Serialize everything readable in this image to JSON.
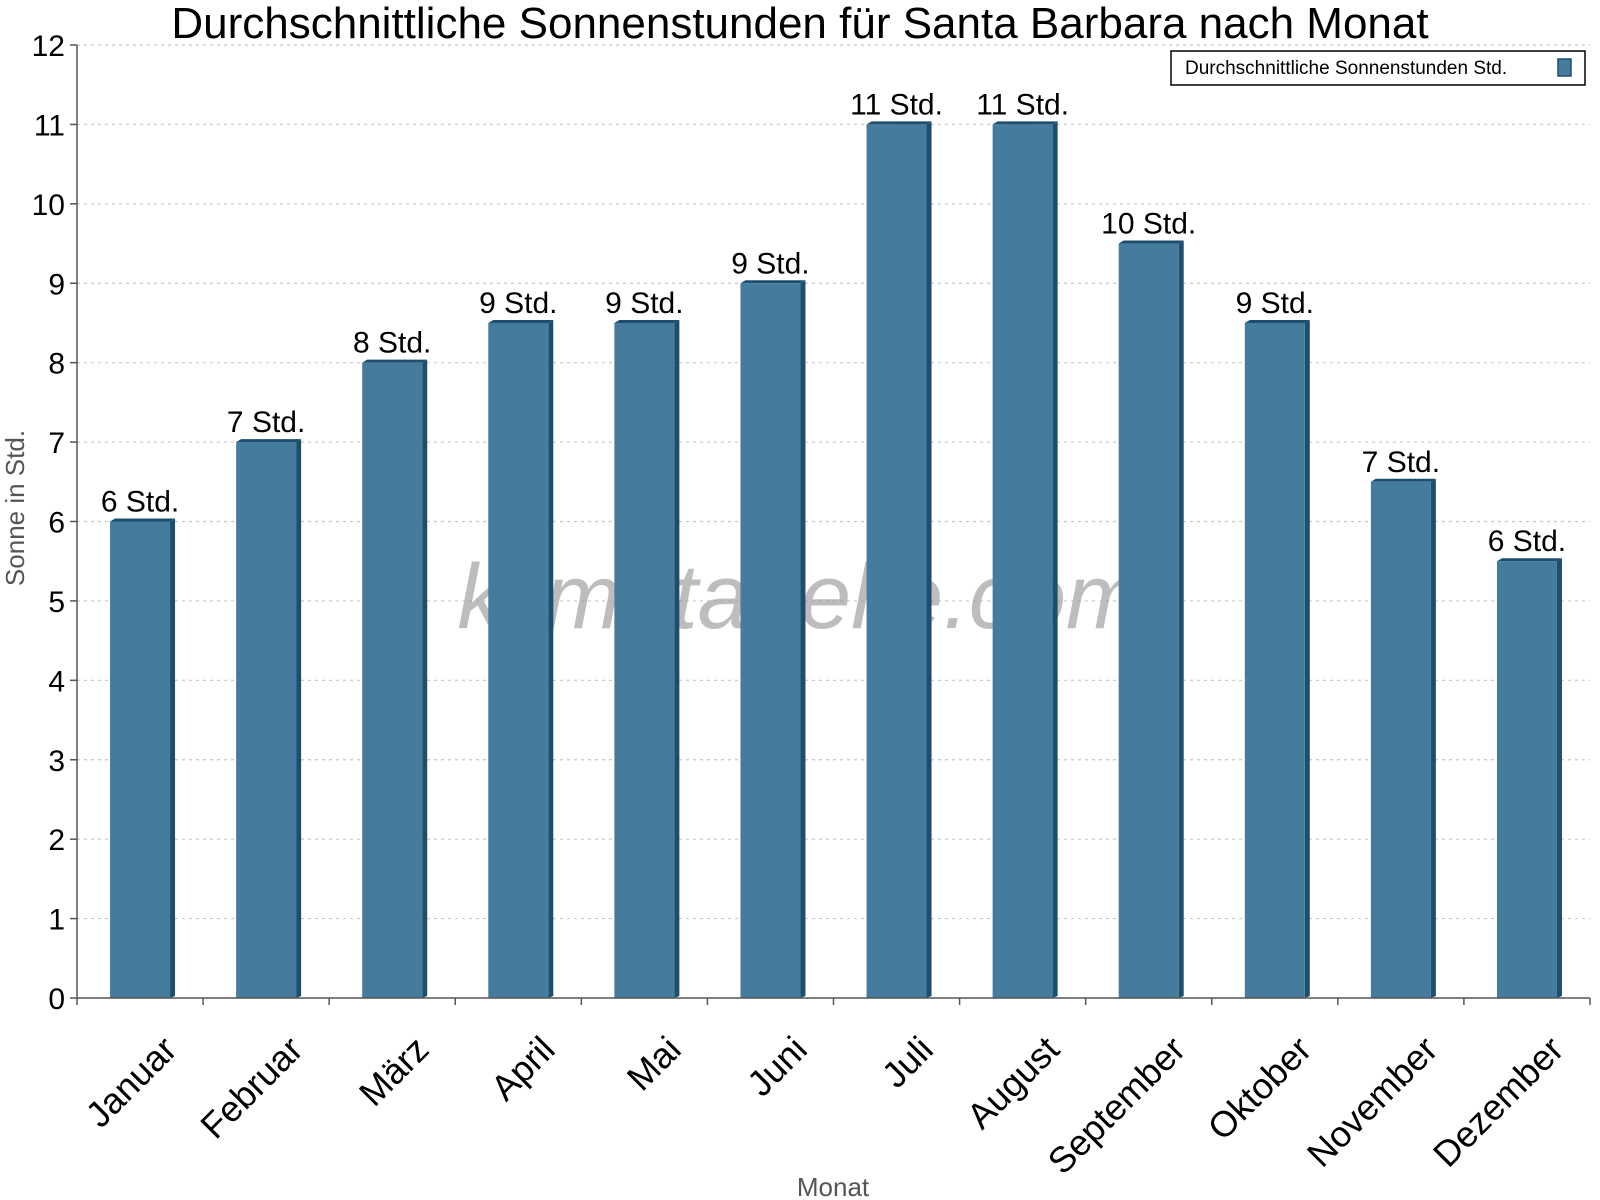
{
  "chart_data": {
    "type": "bar",
    "title": "Durchschnittliche Sonnenstunden für Santa Barbara nach Monat",
    "xlabel": "Monat",
    "ylabel": "Sonne in Std.",
    "ylim": [
      0,
      12
    ],
    "yticks": [
      "0",
      "1",
      "2",
      "3",
      "4",
      "5",
      "6",
      "7",
      "8",
      "9",
      "10",
      "11",
      "12"
    ],
    "categories": [
      "Januar",
      "Februar",
      "März",
      "April",
      "Mai",
      "Juni",
      "Juli",
      "August",
      "September",
      "Oktober",
      "November",
      "Dezember"
    ],
    "series": [
      {
        "name": "Durchschnittliche Sonnenstunden Std.",
        "values": [
          6,
          7,
          8,
          8.5,
          8.5,
          9,
          11,
          11,
          9.5,
          8.5,
          6.5,
          5.5
        ],
        "labels": [
          "6 Std.",
          "7 Std.",
          "8 Std.",
          "9 Std.",
          "9 Std.",
          "9 Std.",
          "11 Std.",
          "11 Std.",
          "10 Std.",
          "9 Std.",
          "7 Std.",
          "6 Std."
        ]
      }
    ],
    "grid": true,
    "legend_position": "top-right",
    "watermark": "klimatabelle.com",
    "colors": {
      "bar": "#457b9d",
      "bar_side": "#1d4e6e",
      "bar_top": "#1d4e6e",
      "grid": "#c8c8c8",
      "axis": "#555555"
    }
  }
}
